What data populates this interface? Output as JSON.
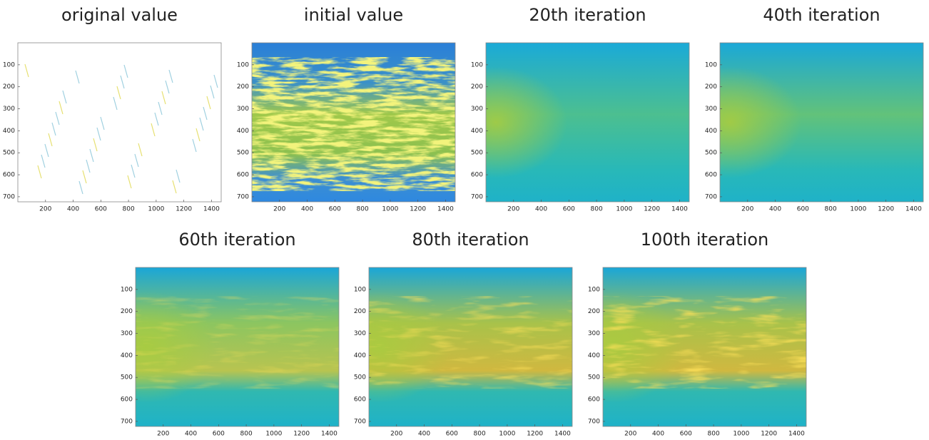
{
  "chart_data": [
    {
      "type": "image",
      "title": "original value",
      "xlim": [
        0,
        1470
      ],
      "ylim": [
        723,
        0
      ],
      "xticks": [
        200,
        400,
        600,
        800,
        1000,
        1200,
        1400
      ],
      "yticks": [
        100,
        200,
        300,
        400,
        500,
        600,
        700
      ]
    },
    {
      "type": "image",
      "title": "initial value",
      "xlim": [
        0,
        1470
      ],
      "ylim": [
        723,
        0
      ],
      "xticks": [
        200,
        400,
        600,
        800,
        1000,
        1200,
        1400
      ],
      "yticks": [
        100,
        200,
        300,
        400,
        500,
        600,
        700
      ]
    },
    {
      "type": "image",
      "title": "20th iteration",
      "xlim": [
        0,
        1470
      ],
      "ylim": [
        723,
        0
      ],
      "xticks": [
        200,
        400,
        600,
        800,
        1000,
        1200,
        1400
      ],
      "yticks": [
        100,
        200,
        300,
        400,
        500,
        600,
        700
      ]
    },
    {
      "type": "image",
      "title": "40th iteration",
      "xlim": [
        0,
        1470
      ],
      "ylim": [
        723,
        0
      ],
      "xticks": [
        200,
        400,
        600,
        800,
        1000,
        1200,
        1400
      ],
      "yticks": [
        100,
        200,
        300,
        400,
        500,
        600,
        700
      ]
    },
    {
      "type": "image",
      "title": "60th iteration",
      "xlim": [
        0,
        1470
      ],
      "ylim": [
        723,
        0
      ],
      "xticks": [
        200,
        400,
        600,
        800,
        1000,
        1200,
        1400
      ],
      "yticks": [
        100,
        200,
        300,
        400,
        500,
        600,
        700
      ]
    },
    {
      "type": "image",
      "title": "80th iteration",
      "xlim": [
        0,
        1470
      ],
      "ylim": [
        723,
        0
      ],
      "xticks": [
        200,
        400,
        600,
        800,
        1000,
        1200,
        1400
      ],
      "yticks": [
        100,
        200,
        300,
        400,
        500,
        600,
        700
      ]
    },
    {
      "type": "image",
      "title": "100th iteration",
      "xlim": [
        0,
        1470
      ],
      "ylim": [
        723,
        0
      ],
      "xticks": [
        200,
        400,
        600,
        800,
        1000,
        1200,
        1400
      ],
      "yticks": [
        100,
        200,
        300,
        400,
        500,
        600,
        700
      ]
    }
  ]
}
